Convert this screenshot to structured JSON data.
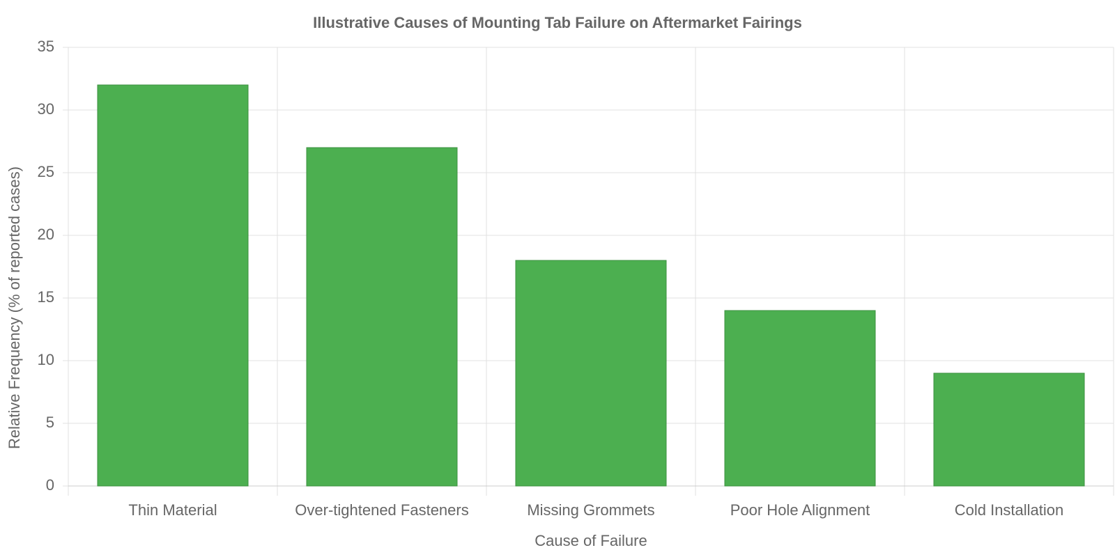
{
  "chart_data": {
    "type": "bar",
    "title": "Illustrative Causes of Mounting Tab Failure on Aftermarket Fairings",
    "x_label": "Cause of Failure",
    "y_label": "Relative Frequency (% of reported cases)",
    "categories": [
      "Thin Material",
      "Over-tightened Fasteners",
      "Missing Grommets",
      "Poor Hole Alignment",
      "Cold Installation"
    ],
    "values": [
      32,
      27,
      18,
      14,
      9
    ],
    "color": "#4caf50",
    "ylim": [
      0,
      35
    ],
    "yticks": [
      0,
      5,
      10,
      15,
      20,
      25,
      30,
      35
    ],
    "grid": true
  }
}
